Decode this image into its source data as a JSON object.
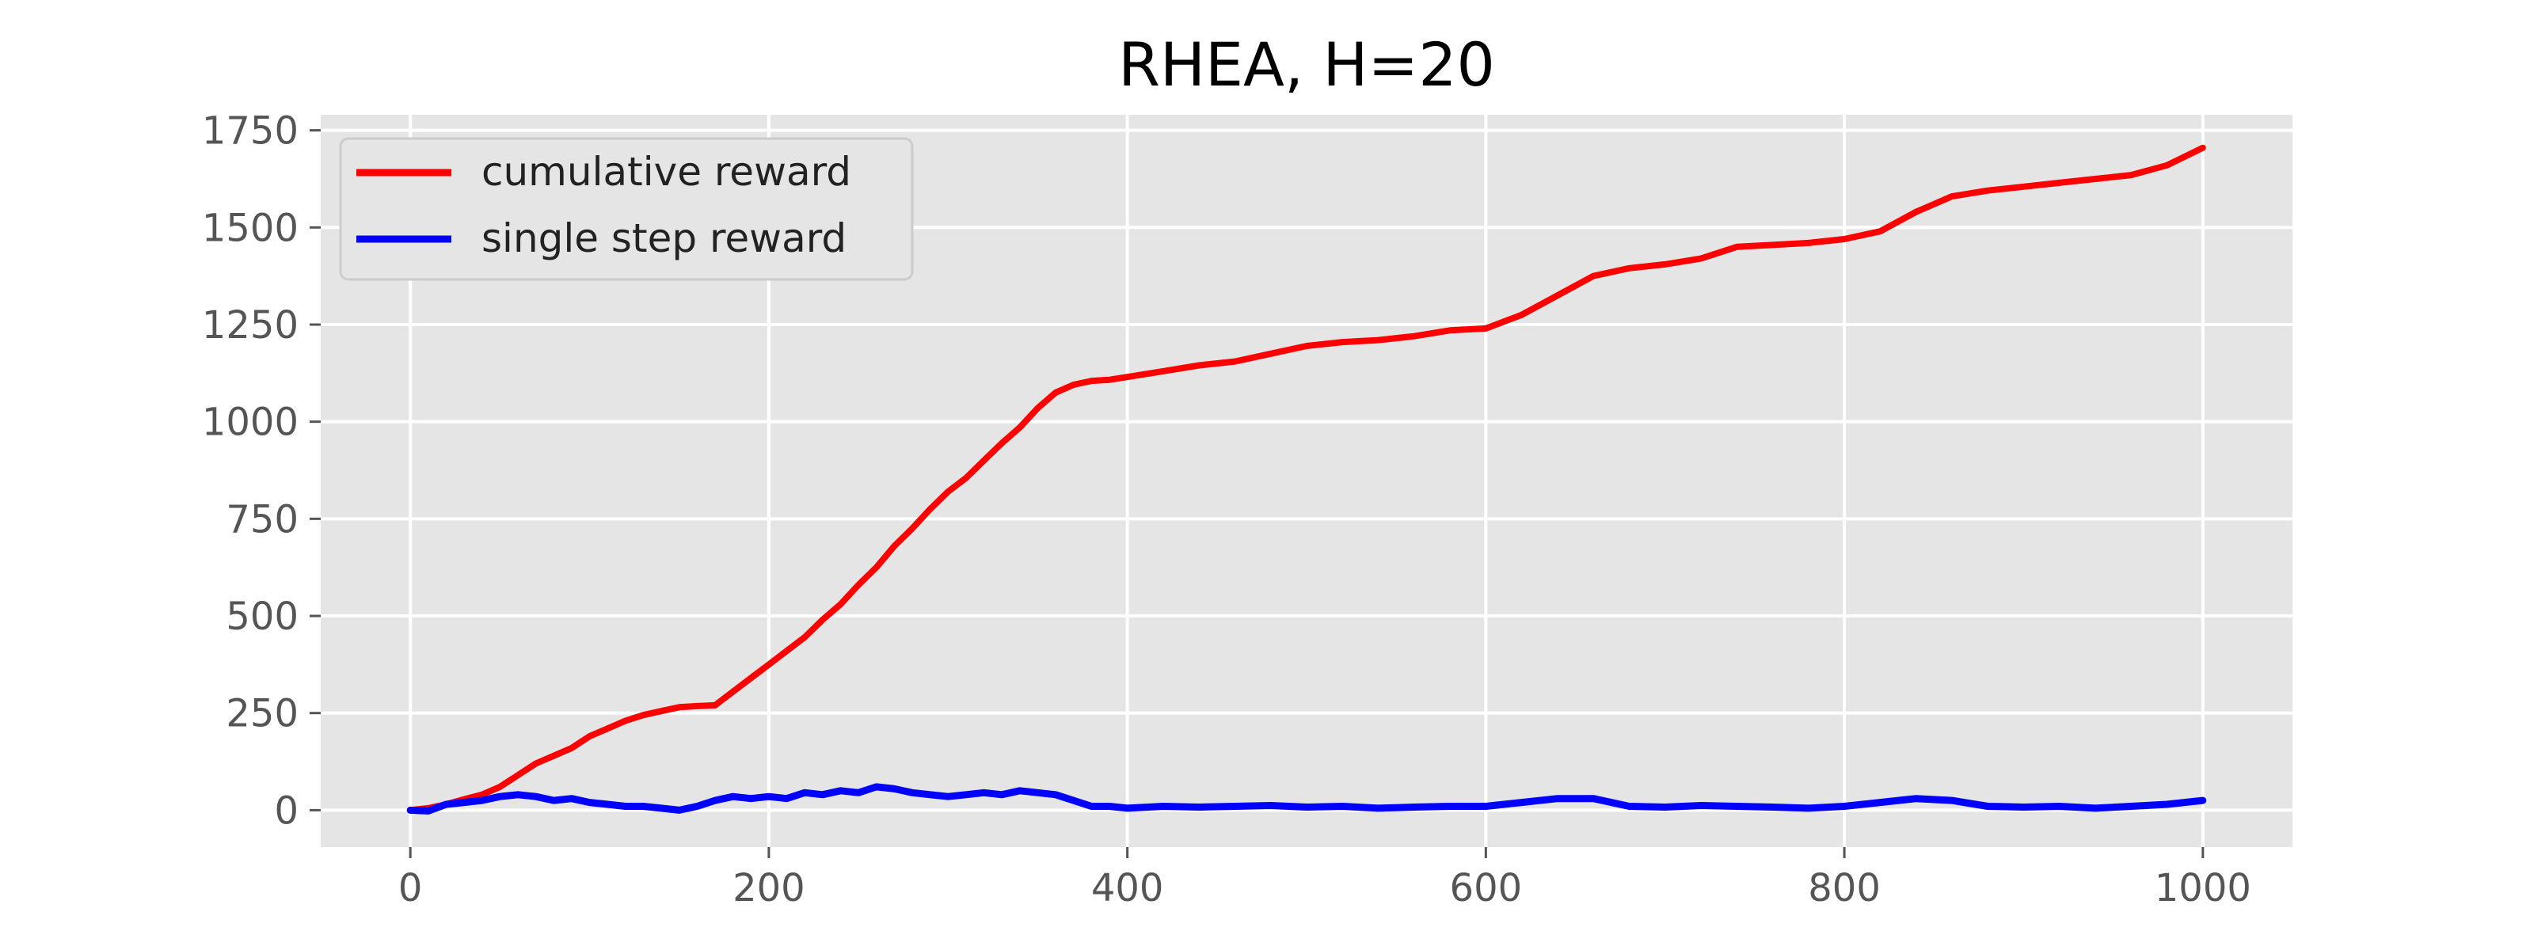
{
  "chart_data": {
    "type": "line",
    "title": "RHEA, H=20",
    "xlabel": "",
    "ylabel": "",
    "xlim": [
      -50,
      1050
    ],
    "ylim": [
      -95,
      1790
    ],
    "xticks": [
      0,
      200,
      400,
      600,
      800,
      1000
    ],
    "yticks": [
      0,
      250,
      500,
      750,
      1000,
      1250,
      1500,
      1750
    ],
    "grid": true,
    "legend": {
      "placement": "top-left"
    },
    "series": [
      {
        "name": "cumulative reward",
        "color": "#ff0000",
        "x": [
          0,
          10,
          20,
          30,
          40,
          50,
          60,
          70,
          80,
          90,
          100,
          110,
          120,
          130,
          140,
          150,
          160,
          170,
          180,
          190,
          200,
          210,
          220,
          230,
          240,
          250,
          260,
          270,
          280,
          290,
          300,
          310,
          320,
          330,
          340,
          350,
          360,
          370,
          380,
          390,
          400,
          420,
          440,
          460,
          480,
          500,
          520,
          540,
          560,
          580,
          600,
          620,
          640,
          660,
          680,
          700,
          720,
          740,
          760,
          780,
          800,
          820,
          840,
          860,
          880,
          900,
          920,
          940,
          960,
          980,
          1000
        ],
        "y": [
          0,
          5,
          15,
          28,
          40,
          60,
          90,
          120,
          140,
          160,
          190,
          210,
          230,
          245,
          255,
          265,
          268,
          270,
          305,
          340,
          375,
          410,
          445,
          490,
          530,
          580,
          625,
          680,
          725,
          775,
          820,
          855,
          900,
          945,
          985,
          1035,
          1075,
          1095,
          1105,
          1108,
          1115,
          1130,
          1145,
          1155,
          1175,
          1195,
          1205,
          1210,
          1220,
          1235,
          1240,
          1275,
          1325,
          1375,
          1395,
          1405,
          1420,
          1450,
          1455,
          1460,
          1470,
          1490,
          1540,
          1580,
          1595,
          1605,
          1615,
          1625,
          1635,
          1660,
          1705
        ]
      },
      {
        "name": "single step reward",
        "color": "#0000ff",
        "x": [
          0,
          10,
          20,
          30,
          40,
          50,
          60,
          70,
          80,
          90,
          100,
          110,
          120,
          130,
          140,
          150,
          160,
          170,
          180,
          190,
          200,
          210,
          220,
          230,
          240,
          250,
          260,
          270,
          280,
          290,
          300,
          310,
          320,
          330,
          340,
          350,
          360,
          370,
          380,
          390,
          400,
          420,
          440,
          460,
          480,
          500,
          520,
          540,
          560,
          580,
          600,
          620,
          640,
          660,
          680,
          700,
          720,
          740,
          760,
          780,
          800,
          820,
          840,
          860,
          880,
          900,
          920,
          940,
          960,
          980,
          1000
        ],
        "y": [
          0,
          -2,
          15,
          20,
          25,
          35,
          40,
          35,
          25,
          30,
          20,
          15,
          10,
          10,
          5,
          0,
          10,
          25,
          35,
          30,
          35,
          30,
          45,
          40,
          50,
          45,
          60,
          55,
          45,
          40,
          35,
          40,
          45,
          40,
          50,
          45,
          40,
          25,
          10,
          10,
          5,
          10,
          8,
          10,
          12,
          8,
          10,
          5,
          8,
          10,
          10,
          20,
          30,
          30,
          10,
          8,
          12,
          10,
          8,
          5,
          10,
          20,
          30,
          25,
          10,
          8,
          10,
          5,
          10,
          15,
          25
        ]
      }
    ]
  }
}
